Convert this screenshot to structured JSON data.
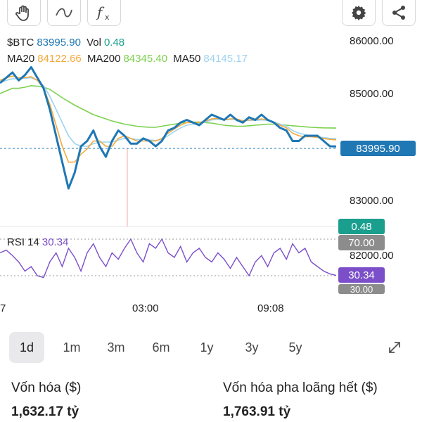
{
  "toolbar": {
    "left_icons": [
      "hand-icon",
      "line-tool-icon",
      "indicator-fx-icon"
    ],
    "right_icons": [
      "gear-icon",
      "share-icon"
    ]
  },
  "legend": {
    "symbol_label": "$BTC",
    "symbol_price": "83995.90",
    "vol_label": "Vol",
    "vol_value": "0.48",
    "ma20_label": "MA20",
    "ma20_value": "84122.66",
    "ma200_label": "MA200",
    "ma200_value": "84345.40",
    "ma50_label": "MA50",
    "ma50_value": "84145.17"
  },
  "colors": {
    "price_line": "#1f77b4",
    "ma20": "#f4a93a",
    "ma200": "#7cd14e",
    "ma50": "#9ed3ef",
    "rsi": "#7b4fc9",
    "price_tag": "#1f77b4",
    "vol_tag": "#1a9e8e",
    "gray_tag": "#8c8c8c"
  },
  "price_axis": {
    "labels": [
      "86000.00",
      "85000.00",
      "83000.00",
      "82000.00"
    ]
  },
  "price_tags": {
    "current": "83995.90",
    "volume": "0.48"
  },
  "rsi": {
    "label": "RSI 14",
    "value": "30.34",
    "upper": "70.00",
    "lower": "30.00"
  },
  "time_axis": {
    "labels": [
      "7",
      "03:00",
      "09:08"
    ]
  },
  "timeframes": {
    "items": [
      "1d",
      "1m",
      "3m",
      "6m",
      "1y",
      "3y",
      "5y"
    ],
    "active": "1d"
  },
  "expand_icon": "expand-icon",
  "stats": {
    "market_cap_label": "Vốn hóa ($)",
    "market_cap_value": "1,632.17 tỷ",
    "fdv_label": "Vốn hóa pha loãng hết ($)",
    "fdv_value": "1,763.91 tỷ"
  },
  "chart_data": {
    "type": "line",
    "price_series": [
      {
        "name": "$BTC",
        "values": [
          85200,
          85300,
          85400,
          85250,
          85350,
          85500,
          85300,
          85100,
          84700,
          84200,
          83700,
          83200,
          83500,
          84000,
          84100,
          84300,
          84000,
          83800,
          84100,
          84300,
          84200,
          84050,
          84050,
          84150,
          84100,
          84000,
          84100,
          84300,
          84350,
          84450,
          84500,
          84450,
          84400,
          84500,
          84600,
          84550,
          84500,
          84600,
          84500,
          84450,
          84550,
          84500,
          84600,
          84500,
          84450,
          84350,
          84300,
          84100,
          84100,
          84200,
          84200,
          84200,
          84100,
          84000,
          83995.9
        ]
      },
      {
        "name": "MA20",
        "values": [
          85250,
          85300,
          85330,
          85300,
          85300,
          85320,
          85250,
          85100,
          84800,
          84400,
          84000,
          83700,
          83700,
          83850,
          83950,
          84100,
          84100,
          84000,
          84000,
          84150,
          84200,
          84150,
          84100,
          84100,
          84100,
          84100,
          84150,
          84250,
          84330,
          84400,
          84450,
          84450,
          84450,
          84480,
          84520,
          84530,
          84500,
          84520,
          84520,
          84480,
          84500,
          84500,
          84520,
          84500,
          84450,
          84400,
          84350,
          84250,
          84200,
          84180,
          84180,
          84170,
          84150,
          84130,
          84122.66
        ]
      },
      {
        "name": "MA200",
        "values": [
          85000,
          85050,
          85100,
          85100,
          85120,
          85150,
          85140,
          85120,
          85080,
          85000,
          84920,
          84850,
          84780,
          84720,
          84660,
          84600,
          84560,
          84520,
          84480,
          84450,
          84420,
          84400,
          84380,
          84370,
          84360,
          84360,
          84380,
          84400,
          84420,
          84440,
          84450,
          84460,
          84460,
          84450,
          84440,
          84420,
          84400,
          84390,
          84380,
          84380,
          84390,
          84400,
          84410,
          84420,
          84420,
          84410,
          84400,
          84390,
          84380,
          84370,
          84360,
          84355,
          84350,
          84348,
          84345.4
        ]
      },
      {
        "name": "MA50",
        "values": [
          85200,
          85250,
          85280,
          85280,
          85290,
          85300,
          85250,
          85150,
          84950,
          84700,
          84450,
          84200,
          84050,
          84000,
          84000,
          84050,
          84080,
          84080,
          84080,
          84120,
          84150,
          84150,
          84130,
          84130,
          84120,
          84110,
          84130,
          84200,
          84280,
          84350,
          84400,
          84420,
          84430,
          84460,
          84500,
          84510,
          84500,
          84510,
          84510,
          84490,
          84490,
          84490,
          84500,
          84490,
          84460,
          84420,
          84380,
          84300,
          84250,
          84220,
          84200,
          84180,
          84165,
          84150,
          84145.17
        ]
      }
    ],
    "rsi_values": [
      55,
      58,
      52,
      45,
      35,
      40,
      30,
      28,
      45,
      55,
      40,
      60,
      50,
      35,
      55,
      65,
      50,
      40,
      55,
      48,
      60,
      70,
      55,
      45,
      65,
      60,
      70,
      55,
      50,
      62,
      45,
      55,
      60,
      50,
      45,
      55,
      48,
      38,
      50,
      40,
      30,
      45,
      52,
      40,
      55,
      60,
      48,
      65,
      55,
      60,
      45,
      40,
      35,
      32,
      30.34
    ],
    "xlabel": "",
    "ylabel": "",
    "ylim": [
      82000,
      86000
    ],
    "rsi_lines": [
      70,
      30
    ],
    "grid": false,
    "time_ticks": [
      "7",
      "03:00",
      "09:08"
    ]
  }
}
